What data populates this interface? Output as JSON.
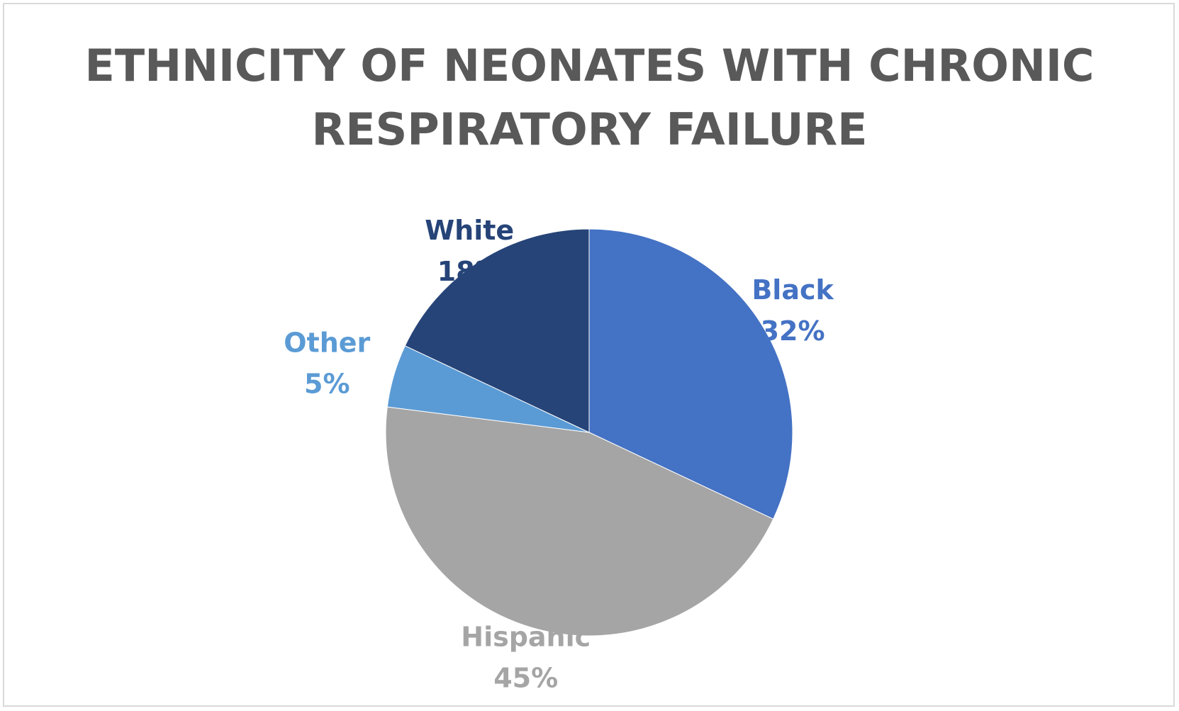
{
  "chart_data": {
    "type": "pie",
    "title_lines": [
      "ETHNICITY OF NEONATES WITH CHRONIC",
      "RESPIRATORY FAILURE"
    ],
    "slices": [
      {
        "name": "Black",
        "value": 32,
        "label": "32%",
        "color": "#4472c4"
      },
      {
        "name": "Hispanic",
        "value": 45,
        "label": "45%",
        "color": "#a5a5a5"
      },
      {
        "name": "Other",
        "value": 5,
        "label": "5%",
        "color": "#5b9bd5"
      },
      {
        "name": "White",
        "value": 18,
        "label": "18%",
        "color": "#264478"
      }
    ],
    "legend": "none",
    "start_angle_deg": 0,
    "direction": "clockwise"
  }
}
